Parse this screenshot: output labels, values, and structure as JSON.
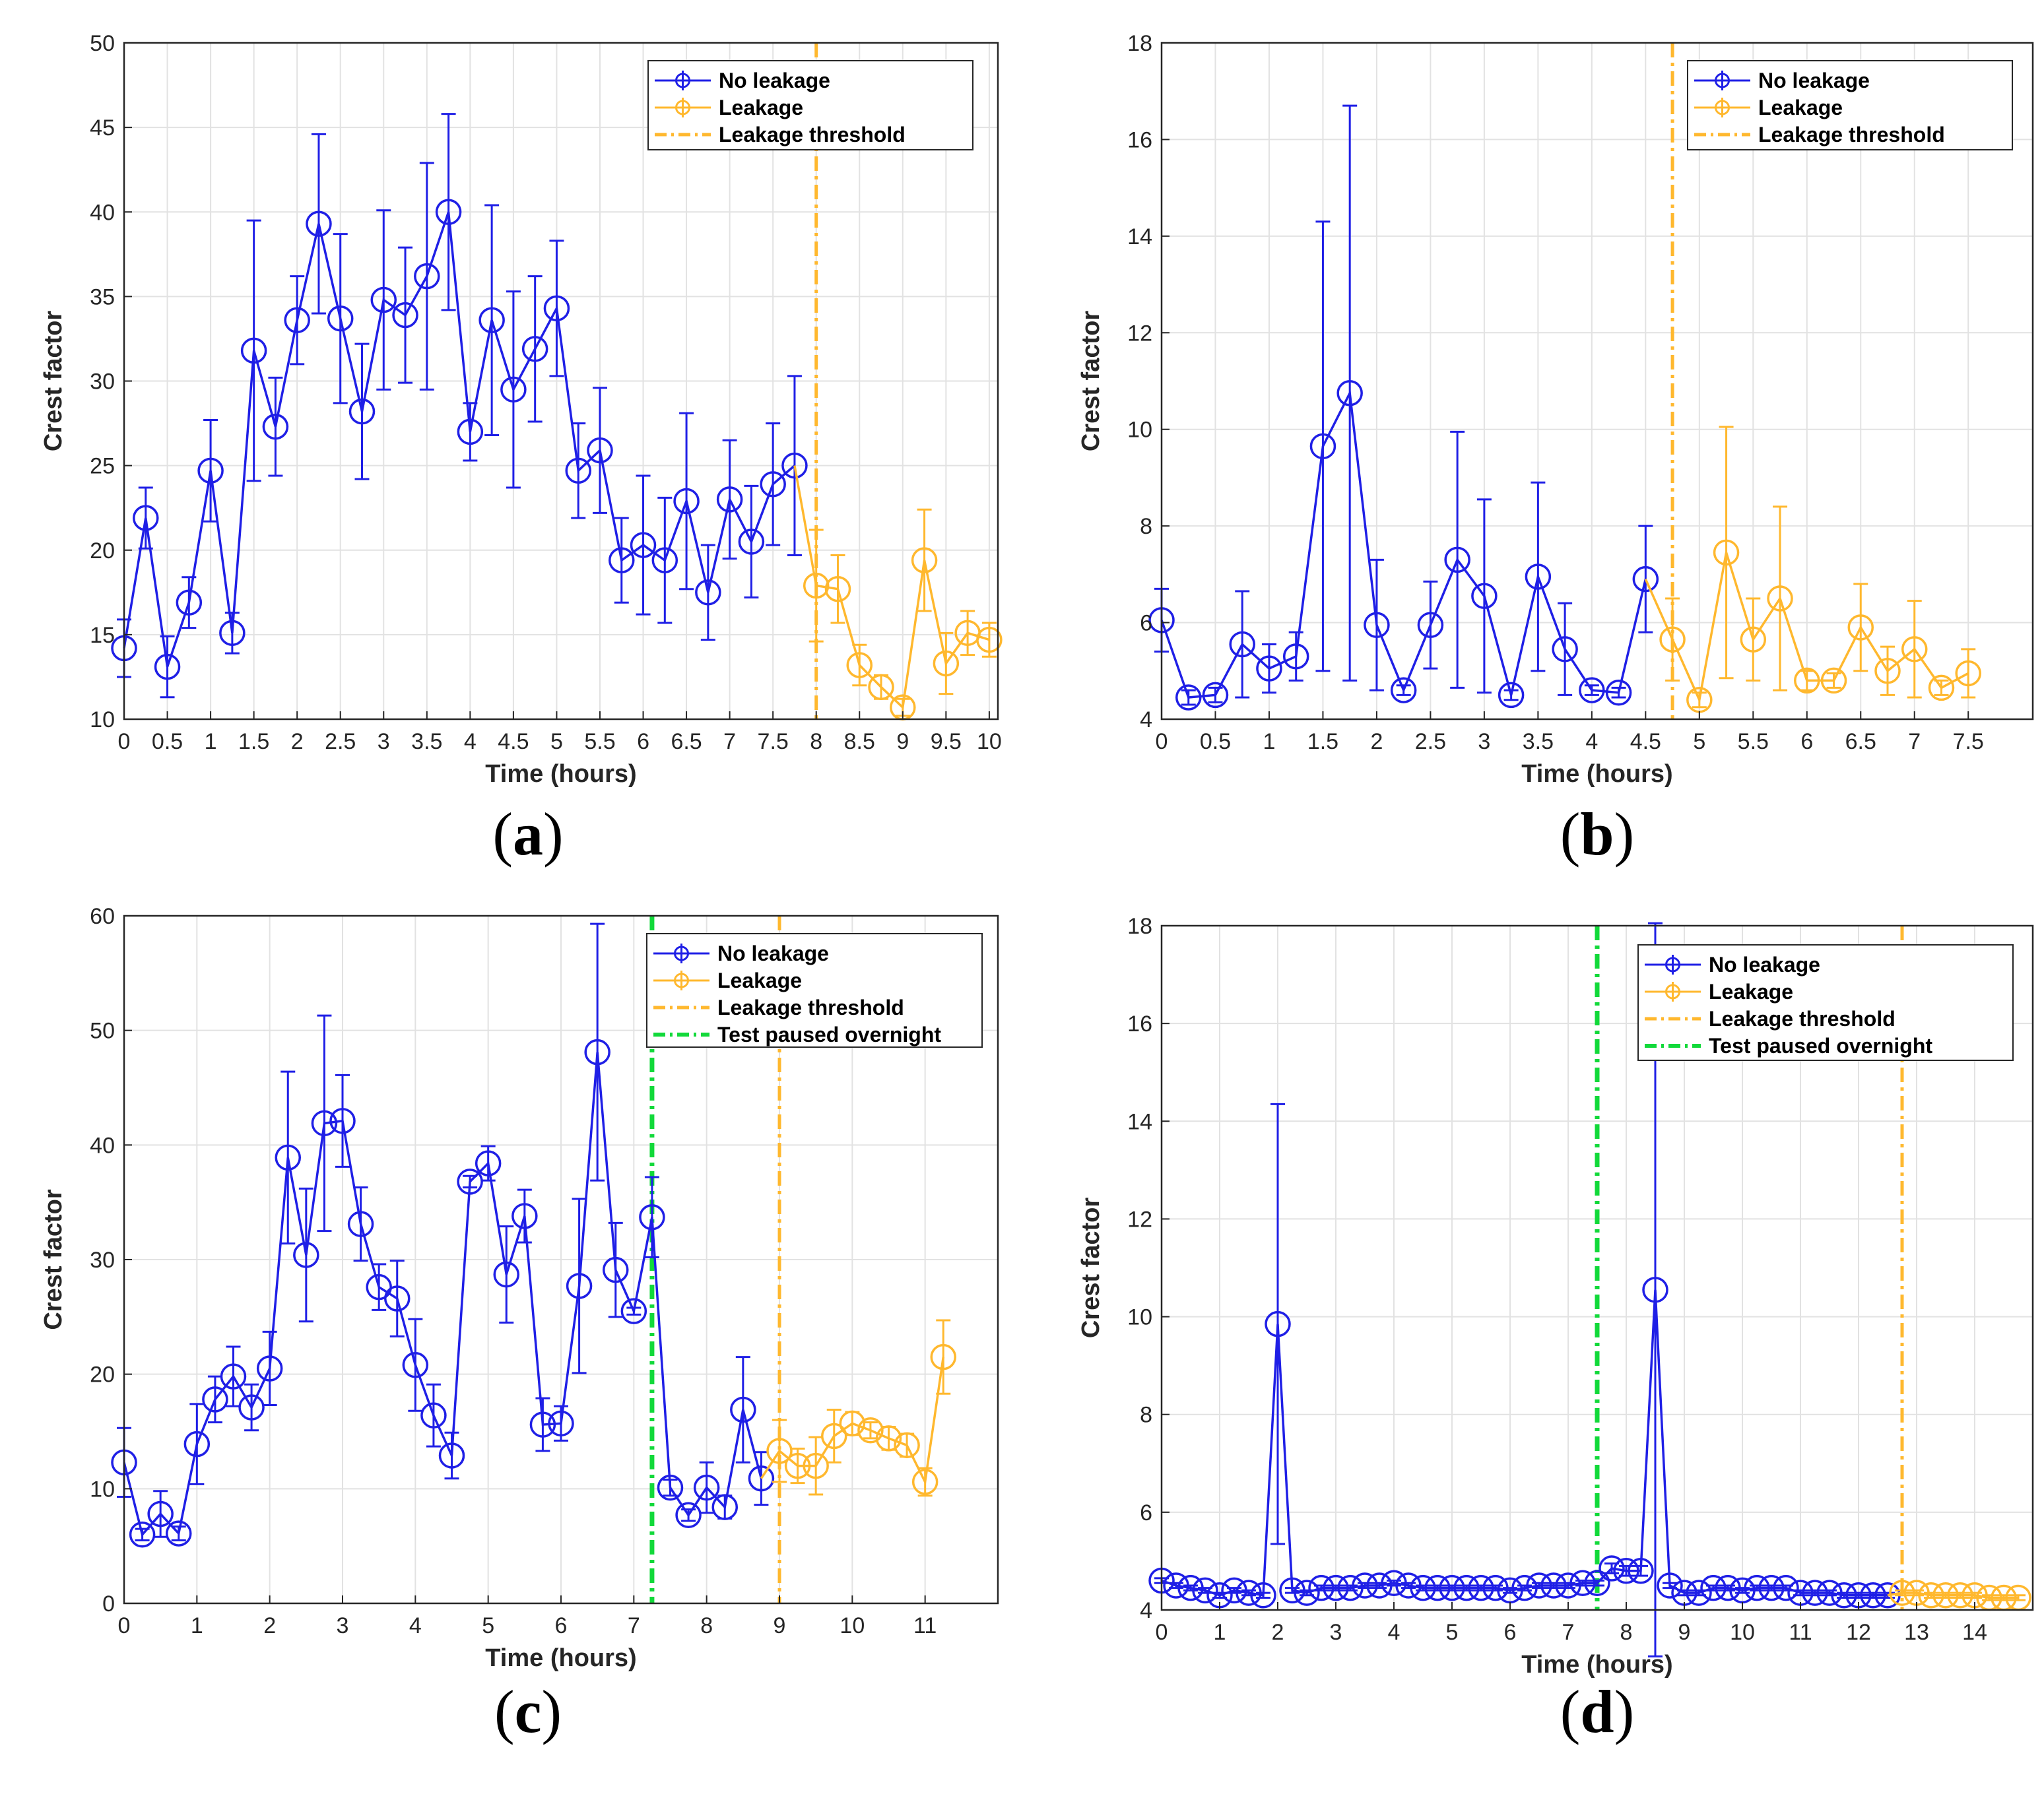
{
  "colors": {
    "no_leakage": "#1f1fe6",
    "leakage": "#ffb82e",
    "threshold": "#ffb82e",
    "paused": "#12d93a",
    "grid": "#e2e2e2",
    "axis": "#262626"
  },
  "chart_data": [
    {
      "id": "a",
      "type": "line",
      "caption": "a",
      "xlabel": "Time (hours)",
      "ylabel": "Crest factor",
      "xlim": [
        0,
        10.1
      ],
      "ylim": [
        10,
        50
      ],
      "xticks": [
        0,
        0.5,
        1,
        1.5,
        2,
        2.5,
        3,
        3.5,
        4,
        4.5,
        5,
        5.5,
        6,
        6.5,
        7,
        7.5,
        8,
        8.5,
        9,
        9.5,
        10
      ],
      "xtick_labels": [
        "0",
        "0.5",
        "1",
        "1.5",
        "2",
        "2.5",
        "3",
        "3.5",
        "4",
        "4.5",
        "5",
        "5.5",
        "6",
        "6.5",
        "7",
        "7.5",
        "8",
        "8.5",
        "9",
        "9.5",
        "10"
      ],
      "yticks": [
        10,
        15,
        20,
        25,
        30,
        35,
        40,
        45,
        50
      ],
      "ytick_labels": [
        "10",
        "15",
        "20",
        "25",
        "30",
        "35",
        "40",
        "45",
        "50"
      ],
      "legend": [
        "No leakage",
        "Leakage",
        "Leakage threshold"
      ],
      "legend_position": "top-right",
      "series": [
        {
          "name": "No leakage",
          "x": [
            0,
            0.25,
            0.5,
            0.75,
            1,
            1.25,
            1.5,
            1.75,
            2,
            2.25,
            2.5,
            2.75,
            3,
            3.25,
            3.5,
            3.75,
            4,
            4.25,
            4.5,
            4.75,
            5,
            5.25,
            5.5,
            5.75,
            6,
            6.25,
            6.5,
            6.75,
            7,
            7.25,
            7.5,
            7.75
          ],
          "y": [
            14.2,
            21.9,
            13.1,
            16.9,
            24.7,
            15.1,
            31.8,
            27.3,
            33.6,
            39.3,
            33.7,
            28.2,
            34.8,
            33.9,
            36.2,
            40.0,
            27.0,
            33.6,
            29.5,
            31.9,
            34.3,
            24.7,
            25.9,
            19.4,
            20.3,
            19.4,
            22.9,
            17.5,
            23.0,
            20.5,
            23.9,
            25.0
          ],
          "err": [
            1.7,
            1.8,
            1.8,
            1.5,
            3.0,
            1.2,
            7.7,
            2.9,
            2.6,
            5.3,
            5.0,
            4.0,
            5.3,
            4.0,
            6.7,
            5.8,
            1.7,
            6.8,
            5.8,
            4.3,
            4.0,
            2.8,
            3.7,
            2.5,
            4.1,
            3.7,
            5.2,
            2.8,
            3.5,
            3.3,
            3.6,
            5.3
          ]
        },
        {
          "name": "Leakage",
          "x": [
            8,
            8.25,
            8.5,
            8.75,
            9,
            9.25,
            9.5,
            9.75,
            10
          ],
          "y": [
            17.9,
            17.7,
            13.2,
            11.9,
            10.7,
            19.4,
            13.3,
            15.1,
            14.7
          ],
          "err": [
            3.3,
            2.0,
            1.2,
            0.7,
            0.5,
            3.0,
            1.8,
            1.3,
            1.0
          ]
        }
      ],
      "thresholds": [
        {
          "name": "Leakage threshold",
          "x": 8
        }
      ]
    },
    {
      "id": "b",
      "type": "line",
      "caption": "b",
      "xlabel": "Time (hours)",
      "ylabel": "Crest factor",
      "xlim": [
        0,
        8.1
      ],
      "ylim": [
        4,
        18
      ],
      "xticks": [
        0,
        0.5,
        1,
        1.5,
        2,
        2.5,
        3,
        3.5,
        4,
        4.5,
        5,
        5.5,
        6,
        6.5,
        7,
        7.5
      ],
      "xtick_labels": [
        "0",
        "0.5",
        "1",
        "1.5",
        "2",
        "2.5",
        "3",
        "3.5",
        "4",
        "4.5",
        "5",
        "5.5",
        "6",
        "6.5",
        "7",
        "7.5"
      ],
      "yticks": [
        4,
        6,
        8,
        10,
        12,
        14,
        16,
        18
      ],
      "ytick_labels": [
        "4",
        "6",
        "8",
        "10",
        "12",
        "14",
        "16",
        "18"
      ],
      "legend": [
        "No leakage",
        "Leakage",
        "Leakage threshold"
      ],
      "legend_position": "top-right",
      "series": [
        {
          "name": "No leakage",
          "x": [
            0,
            0.25,
            0.5,
            0.75,
            1,
            1.25,
            1.5,
            1.75,
            2,
            2.25,
            2.5,
            2.75,
            3,
            3.25,
            3.5,
            3.75,
            4,
            4.25,
            4.5
          ],
          "y": [
            6.05,
            4.45,
            4.5,
            5.55,
            5.05,
            5.3,
            9.65,
            10.75,
            5.95,
            4.6,
            5.95,
            7.3,
            6.55,
            4.5,
            6.95,
            5.45,
            4.6,
            4.55,
            6.9
          ],
          "err": [
            0.65,
            0.15,
            0.15,
            1.1,
            0.5,
            0.5,
            4.65,
            5.95,
            1.35,
            0.1,
            0.9,
            2.65,
            2.0,
            0.1,
            1.95,
            0.95,
            0.1,
            0.1,
            1.1
          ]
        },
        {
          "name": "Leakage",
          "x": [
            4.75,
            5,
            5.25,
            5.5,
            5.75,
            6,
            6.25,
            6.5,
            6.75,
            7,
            7.25,
            7.5
          ],
          "y": [
            5.65,
            4.4,
            7.45,
            5.65,
            6.5,
            4.8,
            4.8,
            5.9,
            5.0,
            5.45,
            4.65,
            4.95
          ],
          "err": [
            0.85,
            0.15,
            2.6,
            0.85,
            1.9,
            0.2,
            0.15,
            0.9,
            0.5,
            1.0,
            0.15,
            0.5
          ]
        }
      ],
      "thresholds": [
        {
          "name": "Leakage threshold",
          "x": 4.75
        }
      ]
    },
    {
      "id": "c",
      "type": "line",
      "caption": "c",
      "xlabel": "Time (hours)",
      "ylabel": "Crest factor",
      "xlim": [
        0,
        12
      ],
      "ylim": [
        0,
        60
      ],
      "xticks": [
        0,
        1,
        2,
        3,
        4,
        5,
        6,
        7,
        8,
        9,
        10,
        11
      ],
      "xtick_labels": [
        "0",
        "1",
        "2",
        "3",
        "4",
        "5",
        "6",
        "7",
        "8",
        "9",
        "10",
        "11"
      ],
      "yticks": [
        0,
        10,
        20,
        30,
        40,
        50,
        60
      ],
      "ytick_labels": [
        "0",
        "10",
        "20",
        "30",
        "40",
        "50",
        "60"
      ],
      "legend": [
        "No leakage",
        "Leakage",
        "Leakage threshold",
        "Test paused overnight"
      ],
      "legend_position": "top-right",
      "series": [
        {
          "name": "No leakage",
          "x": [
            0,
            0.25,
            0.5,
            0.75,
            1,
            1.25,
            1.5,
            1.75,
            2,
            2.25,
            2.5,
            2.75,
            3,
            3.25,
            3.5,
            3.75,
            4,
            4.25,
            4.5,
            4.75,
            5,
            5.25,
            5.5,
            5.75,
            6,
            6.25,
            6.5,
            6.75,
            7,
            7.25,
            7.5,
            7.75,
            8,
            8.25,
            8.5,
            8.75
          ],
          "y": [
            12.3,
            6.0,
            7.8,
            6.1,
            13.9,
            17.8,
            19.8,
            17.1,
            20.5,
            38.9,
            30.4,
            41.9,
            42.1,
            33.1,
            27.6,
            26.6,
            20.8,
            16.4,
            12.9,
            36.8,
            38.4,
            28.7,
            33.8,
            15.6,
            15.7,
            27.7,
            48.1,
            29.1,
            25.5,
            33.7,
            10.1,
            7.7,
            10.1,
            8.4,
            16.9,
            10.9
          ],
          "err": [
            3.0,
            0.5,
            2.0,
            0.6,
            3.5,
            2.0,
            2.6,
            2.0,
            3.2,
            7.5,
            5.8,
            9.4,
            4.0,
            3.2,
            2.0,
            3.3,
            4.0,
            2.7,
            2.0,
            0.5,
            1.5,
            4.2,
            2.3,
            2.3,
            1.5,
            7.6,
            11.2,
            4.1,
            0.3,
            3.5,
            0.7,
            0.5,
            2.2,
            1.0,
            4.6,
            2.3
          ]
        },
        {
          "name": "Leakage",
          "x": [
            9,
            9.25,
            9.5,
            9.75,
            10,
            10.25,
            10.5,
            10.75,
            11,
            11.25
          ],
          "y": [
            13.3,
            12.0,
            12.0,
            14.6,
            15.7,
            15.1,
            14.4,
            13.8,
            10.6,
            21.5
          ],
          "err": [
            2.7,
            1.5,
            2.5,
            2.3,
            1.0,
            0.7,
            1.0,
            1.0,
            1.2,
            3.2
          ]
        }
      ],
      "thresholds": [
        {
          "name": "Leakage threshold",
          "x": 9
        },
        {
          "name": "Test paused overnight",
          "x": 7.25
        }
      ]
    },
    {
      "id": "d",
      "type": "line",
      "caption": "d",
      "xlabel": "Time (hours)",
      "ylabel": "Crest factor",
      "xlim": [
        0,
        15
      ],
      "ylim": [
        4,
        18
      ],
      "xticks": [
        0,
        1,
        2,
        3,
        4,
        5,
        6,
        7,
        8,
        9,
        10,
        11,
        12,
        13,
        14
      ],
      "xtick_labels": [
        "0",
        "1",
        "2",
        "3",
        "4",
        "5",
        "6",
        "7",
        "8",
        "9",
        "10",
        "11",
        "12",
        "13",
        "14"
      ],
      "yticks": [
        4,
        6,
        8,
        10,
        12,
        14,
        16,
        18
      ],
      "ytick_labels": [
        "4",
        "6",
        "8",
        "10",
        "12",
        "14",
        "16",
        "18"
      ],
      "legend": [
        "No leakage",
        "Leakage",
        "Leakage threshold",
        "Test paused overnight"
      ],
      "legend_position": "top-right",
      "series": [
        {
          "name": "No leakage",
          "x": [
            0,
            0.25,
            0.5,
            0.75,
            1,
            1.25,
            1.5,
            1.75,
            2,
            2.25,
            2.5,
            2.75,
            3,
            3.25,
            3.5,
            3.75,
            4,
            4.25,
            4.5,
            4.75,
            5,
            5.25,
            5.5,
            5.75,
            6,
            6.25,
            6.5,
            6.75,
            7,
            7.25,
            7.5,
            7.75,
            8,
            8.25,
            8.5,
            8.75,
            9,
            9.25,
            9.5,
            9.75,
            10,
            10.25,
            10.5,
            10.75,
            11,
            11.25,
            11.5,
            11.75,
            12,
            12.25,
            12.5
          ],
          "y": [
            4.6,
            4.5,
            4.45,
            4.4,
            4.3,
            4.4,
            4.35,
            4.3,
            9.85,
            4.4,
            4.35,
            4.45,
            4.45,
            4.45,
            4.5,
            4.5,
            4.55,
            4.5,
            4.45,
            4.45,
            4.45,
            4.45,
            4.45,
            4.45,
            4.4,
            4.45,
            4.5,
            4.5,
            4.5,
            4.55,
            4.55,
            4.85,
            4.8,
            4.8,
            10.55,
            4.5,
            4.35,
            4.35,
            4.45,
            4.45,
            4.4,
            4.45,
            4.45,
            4.45,
            4.35,
            4.35,
            4.35,
            4.3,
            4.3,
            4.3,
            4.3
          ],
          "err": [
            0.05,
            0.05,
            0.05,
            0.05,
            0.05,
            0.05,
            0.05,
            0.05,
            4.5,
            0.05,
            0.05,
            0.05,
            0.05,
            0.05,
            0.05,
            0.05,
            0.05,
            0.05,
            0.05,
            0.05,
            0.05,
            0.05,
            0.05,
            0.05,
            0.05,
            0.05,
            0.05,
            0.05,
            0.05,
            0.05,
            0.05,
            0.1,
            0.1,
            0.1,
            7.5,
            0.05,
            0.05,
            0.05,
            0.05,
            0.05,
            0.05,
            0.05,
            0.05,
            0.05,
            0.05,
            0.05,
            0.05,
            0.05,
            0.05,
            0.05,
            0.05
          ]
        },
        {
          "name": "Leakage",
          "x": [
            12.75,
            13,
            13.25,
            13.5,
            13.75,
            14,
            14.25,
            14.5,
            14.75
          ],
          "y": [
            4.35,
            4.35,
            4.3,
            4.3,
            4.3,
            4.3,
            4.25,
            4.25,
            4.25
          ],
          "err": [
            0.05,
            0.05,
            0.05,
            0.05,
            0.05,
            0.05,
            0.05,
            0.05,
            0.05
          ]
        }
      ],
      "thresholds": [
        {
          "name": "Leakage threshold",
          "x": 12.75
        },
        {
          "name": "Test paused overnight",
          "x": 7.5
        }
      ]
    }
  ]
}
